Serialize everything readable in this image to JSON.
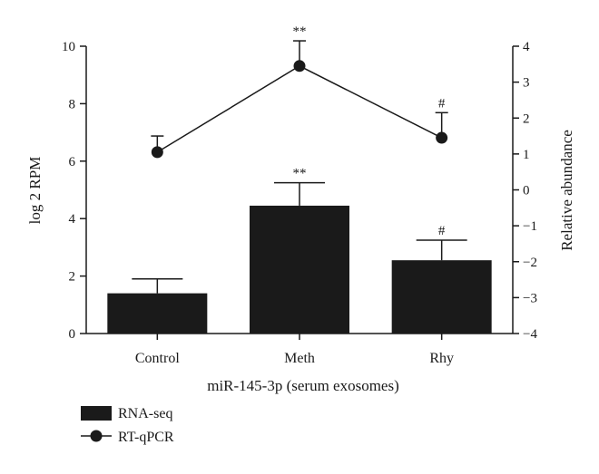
{
  "chart_data": {
    "type": "bar",
    "categories": [
      "Control",
      "Meth",
      "Rhy"
    ],
    "xlabel": "miR-145-3p (serum exosomes)",
    "ylabel": "log 2 RPM",
    "ylabel_right": "Relative abundance",
    "ylim": [
      0,
      10
    ],
    "ylim_right": [
      -4,
      4
    ],
    "yticks": [
      0,
      2,
      4,
      6,
      8,
      10
    ],
    "yticks_right": [
      -4,
      -3,
      -2,
      -1,
      0,
      1,
      2,
      3,
      4
    ],
    "ytick_labels_right": [
      "−4",
      "−3",
      "−2",
      "−1",
      "0",
      "1",
      "2",
      "3",
      "4"
    ],
    "series": [
      {
        "name": "RNA-seq",
        "type": "bar",
        "axis": "left",
        "color": "#1a1a1a",
        "values": [
          1.4,
          4.45,
          2.55
        ],
        "errors": [
          0.5,
          0.8,
          0.7
        ],
        "annotations": [
          "",
          "**",
          "#"
        ]
      },
      {
        "name": "RT-qPCR",
        "type": "line",
        "axis": "right",
        "color": "#1a1a1a",
        "values": [
          1.05,
          3.45,
          1.45
        ],
        "errors": [
          0.45,
          0.7,
          0.7
        ],
        "annotations": [
          "",
          "**",
          "#"
        ]
      }
    ],
    "legend": [
      "RNA-seq",
      "RT-qPCR"
    ],
    "legend_position": "bottom-left"
  }
}
